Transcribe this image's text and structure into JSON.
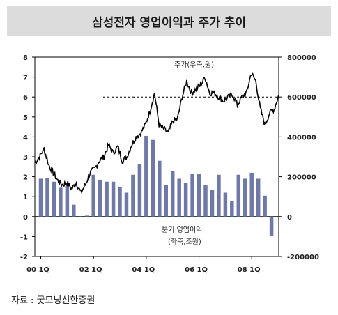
{
  "title": "삼성전자 영업이익과 주가 추이",
  "source": "자료 : 굿모닝신한증권",
  "chart_data": {
    "type": "bar+line",
    "x_tick_labels": [
      "00 1Q",
      "02 1Q",
      "04 1Q",
      "06 1Q",
      "08 1Q"
    ],
    "left_axis": {
      "ylim": [
        -2,
        8
      ],
      "ticks": [
        "8",
        "7",
        "6",
        "5",
        "4",
        "3",
        "2",
        "1",
        "0",
        "-1",
        "-2"
      ]
    },
    "right_axis": {
      "ylim": [
        -200000,
        800000
      ],
      "ticks": [
        "800000",
        "600000",
        "400000",
        "200000",
        "0",
        "-200000"
      ]
    },
    "bar_series": {
      "name": "분기 영업이익",
      "unit": "(좌축,조원)",
      "color": "#6f79a8",
      "values": [
        1.9,
        1.95,
        1.75,
        1.45,
        1.6,
        0.6,
        0.0,
        0.05,
        2.1,
        1.85,
        1.75,
        1.75,
        1.5,
        1.2,
        2.1,
        2.65,
        4.05,
        3.85,
        2.8,
        1.6,
        2.3,
        1.9,
        1.7,
        2.15,
        2.15,
        1.6,
        1.35,
        2.1,
        1.2,
        0.8,
        2.1,
        1.9,
        2.2,
        1.9,
        1.05,
        -0.95
      ]
    },
    "line_series": {
      "name": "주가(우측,원)",
      "color": "#000000",
      "reference_line": 600000,
      "values": [
        270000,
        300000,
        340000,
        260000,
        220000,
        180000,
        160000,
        170000,
        140000,
        170000,
        120000,
        160000,
        220000,
        240000,
        280000,
        300000,
        360000,
        320000,
        350000,
        280000,
        300000,
        360000,
        400000,
        420000,
        460000,
        530000,
        620000,
        460000,
        440000,
        420000,
        480000,
        490000,
        600000,
        680000,
        620000,
        640000,
        660000,
        700000,
        620000,
        620000,
        600000,
        580000,
        600000,
        610000,
        560000,
        600000,
        620000,
        720000,
        680000,
        540000,
        460000,
        520000,
        540000,
        610000
      ]
    }
  }
}
